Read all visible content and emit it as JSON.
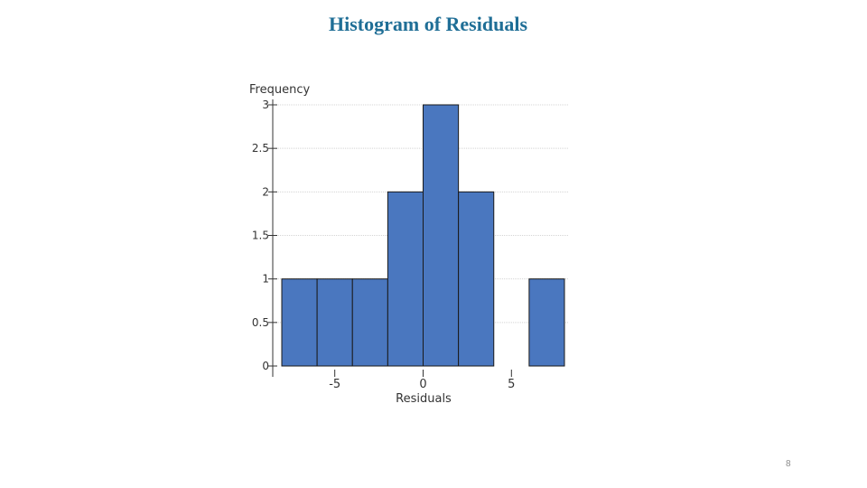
{
  "slide": {
    "title": "Histogram of Residuals",
    "page_number": "8"
  },
  "colors": {
    "bar_fill": "#4a77bf",
    "bar_stroke": "#1a1a1a",
    "title": "#1f6e96",
    "grid": "#d4d4d4"
  },
  "chart_data": {
    "type": "bar",
    "title": "",
    "xlabel": "Residuals",
    "ylabel": "Frequency",
    "bins": [
      {
        "x0": -8,
        "x1": -6,
        "count": 1
      },
      {
        "x0": -6,
        "x1": -4,
        "count": 1
      },
      {
        "x0": -4,
        "x1": -2,
        "count": 1
      },
      {
        "x0": -2,
        "x1": 0,
        "count": 2
      },
      {
        "x0": 0,
        "x1": 2,
        "count": 3
      },
      {
        "x0": 2,
        "x1": 4,
        "count": 2
      },
      {
        "x0": 4,
        "x1": 6,
        "count": 0
      },
      {
        "x0": 6,
        "x1": 8,
        "count": 1
      }
    ],
    "xlim": [
      -8,
      8
    ],
    "ylim": [
      0,
      3
    ],
    "x_ticks": [
      -5,
      0,
      5
    ],
    "y_ticks": [
      0,
      0.5,
      1,
      1.5,
      2,
      2.5,
      3
    ],
    "grid": true
  }
}
